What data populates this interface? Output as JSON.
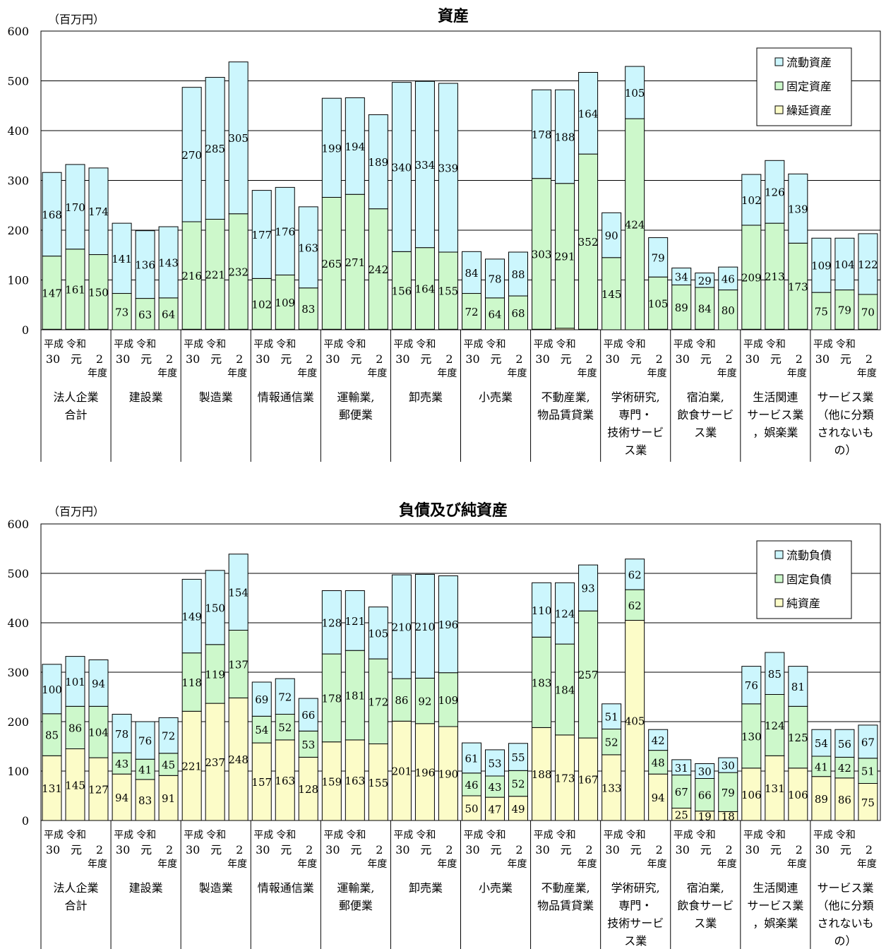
{
  "colors": {
    "cyan": "#ccf6fd",
    "green": "#cdf8cb",
    "yellow": "#fcfcc8",
    "grid": "#000000"
  },
  "era_labels": {
    "h": "平成",
    "r": "令和"
  },
  "year_labels": [
    "30",
    "元",
    "2"
  ],
  "nendo": "年度",
  "charts": [
    {
      "title": "資産",
      "unit": "（百万円）",
      "ylim": [
        0,
        600
      ],
      "yticks": [
        "0",
        "100",
        "200",
        "300",
        "400",
        "500",
        "600"
      ],
      "legend": [
        "流動資産",
        "固定資産",
        "繰延資産"
      ],
      "industries": [
        [
          "法人企業",
          "合計"
        ],
        [
          "建設業"
        ],
        [
          "製造業"
        ],
        [
          "情報通信業"
        ],
        [
          "運輸業,",
          "郵便業"
        ],
        [
          "卸売業"
        ],
        [
          "小売業"
        ],
        [
          "不動産業,",
          "物品賃貸業"
        ],
        [
          "学術研究,",
          "専門・",
          "技術サービ",
          "ス業"
        ],
        [
          "宿泊業,",
          "飲食サービ",
          "ス業"
        ],
        [
          "生活関連",
          "サービス業",
          "，娯楽業"
        ],
        [
          "サービス業",
          "（他に分類",
          "されないも",
          "の）"
        ]
      ]
    },
    {
      "title": "負債及び純資産",
      "unit": "（百万円）",
      "ylim": [
        0,
        600
      ],
      "yticks": [
        "0",
        "100",
        "200",
        "300",
        "400",
        "500",
        "600"
      ],
      "legend": [
        "流動負債",
        "固定負債",
        "純資産"
      ],
      "industries": [
        [
          "法人企業",
          "合計"
        ],
        [
          "建設業"
        ],
        [
          "製造業"
        ],
        [
          "情報通信業"
        ],
        [
          "運輸業,",
          "郵便業"
        ],
        [
          "卸売業"
        ],
        [
          "小売業"
        ],
        [
          "不動産業,",
          "物品賃貸業"
        ],
        [
          "学術研究,",
          "専門・",
          "技術サービ",
          "ス業"
        ],
        [
          "宿泊業,",
          "飲食サービ",
          "ス業"
        ],
        [
          "生活関連",
          "サービス業",
          "，娯楽業"
        ],
        [
          "サービス業",
          "（他に分類",
          "されないも",
          "の）"
        ]
      ]
    }
  ],
  "chart_data": [
    {
      "type": "bar",
      "stacked": true,
      "title": "資産",
      "ylabel": "（百万円）",
      "ylim": [
        0,
        600
      ],
      "categories": [
        "法人企業合計",
        "建設業",
        "製造業",
        "情報通信業",
        "運輸業,郵便業",
        "卸売業",
        "小売業",
        "不動産業,物品賃貸業",
        "学術研究,専門・技術サービス業",
        "宿泊業,飲食サービス業",
        "生活関連サービス業，娯楽業",
        "サービス業（他に分類されないもの）"
      ],
      "years": [
        "平成30",
        "令和元",
        "令和2"
      ],
      "series": [
        {
          "name": "繰延資産",
          "values": [
            [
              1,
              1,
              1
            ],
            [
              0,
              0,
              0
            ],
            [
              1,
              1,
              1
            ],
            [
              1,
              1,
              1
            ],
            [
              1,
              1,
              1
            ],
            [
              1,
              1,
              1
            ],
            [
              1,
              0,
              0
            ],
            [
              1,
              3,
              1
            ],
            [
              0,
              0,
              1
            ],
            [
              1,
              1,
              0
            ],
            [
              1,
              1,
              1
            ],
            [
              0,
              1,
              1
            ]
          ]
        },
        {
          "name": "固定資産",
          "values": [
            [
              147,
              161,
              150
            ],
            [
              73,
              63,
              64
            ],
            [
              216,
              221,
              232
            ],
            [
              102,
              109,
              83
            ],
            [
              265,
              271,
              242
            ],
            [
              156,
              164,
              155
            ],
            [
              72,
              64,
              68
            ],
            [
              303,
              291,
              352
            ],
            [
              145,
              424,
              105
            ],
            [
              89,
              84,
              80
            ],
            [
              209,
              213,
              173
            ],
            [
              75,
              79,
              70
            ]
          ]
        },
        {
          "name": "流動資産",
          "values": [
            [
              168,
              170,
              174
            ],
            [
              141,
              136,
              143
            ],
            [
              270,
              285,
              305
            ],
            [
              177,
              176,
              163
            ],
            [
              199,
              194,
              189
            ],
            [
              340,
              334,
              339
            ],
            [
              84,
              78,
              88
            ],
            [
              178,
              188,
              164
            ],
            [
              90,
              105,
              79
            ],
            [
              34,
              29,
              46
            ],
            [
              102,
              126,
              139
            ],
            [
              109,
              104,
              122
            ]
          ]
        }
      ]
    },
    {
      "type": "bar",
      "stacked": true,
      "title": "負債及び純資産",
      "ylabel": "（百万円）",
      "ylim": [
        0,
        600
      ],
      "categories": [
        "法人企業合計",
        "建設業",
        "製造業",
        "情報通信業",
        "運輸業,郵便業",
        "卸売業",
        "小売業",
        "不動産業,物品賃貸業",
        "学術研究,専門・技術サービス業",
        "宿泊業,飲食サービス業",
        "生活関連サービス業，娯楽業",
        "サービス業（他に分類されないもの）"
      ],
      "years": [
        "平成30",
        "令和元",
        "令和2"
      ],
      "series": [
        {
          "name": "純資産",
          "values": [
            [
              131,
              145,
              127
            ],
            [
              94,
              83,
              91
            ],
            [
              221,
              237,
              248
            ],
            [
              157,
              163,
              128
            ],
            [
              159,
              163,
              155
            ],
            [
              201,
              196,
              190
            ],
            [
              50,
              47,
              49
            ],
            [
              188,
              173,
              167
            ],
            [
              133,
              405,
              94
            ],
            [
              25,
              19,
              18
            ],
            [
              106,
              131,
              106
            ],
            [
              89,
              86,
              75
            ]
          ]
        },
        {
          "name": "固定負債",
          "values": [
            [
              85,
              86,
              104
            ],
            [
              43,
              41,
              45
            ],
            [
              118,
              119,
              137
            ],
            [
              54,
              52,
              53
            ],
            [
              178,
              181,
              172
            ],
            [
              86,
              92,
              109
            ],
            [
              46,
              43,
              52
            ],
            [
              183,
              184,
              257
            ],
            [
              52,
              62,
              48
            ],
            [
              67,
              66,
              79
            ],
            [
              130,
              124,
              125
            ],
            [
              41,
              42,
              51
            ]
          ]
        },
        {
          "name": "流動負債",
          "values": [
            [
              100,
              101,
              94
            ],
            [
              78,
              76,
              72
            ],
            [
              149,
              150,
              154
            ],
            [
              69,
              72,
              66
            ],
            [
              128,
              121,
              105
            ],
            [
              210,
              210,
              196
            ],
            [
              61,
              53,
              55
            ],
            [
              110,
              124,
              93
            ],
            [
              51,
              62,
              42
            ],
            [
              31,
              30,
              30
            ],
            [
              76,
              85,
              81
            ],
            [
              54,
              56,
              67
            ]
          ]
        }
      ]
    }
  ]
}
